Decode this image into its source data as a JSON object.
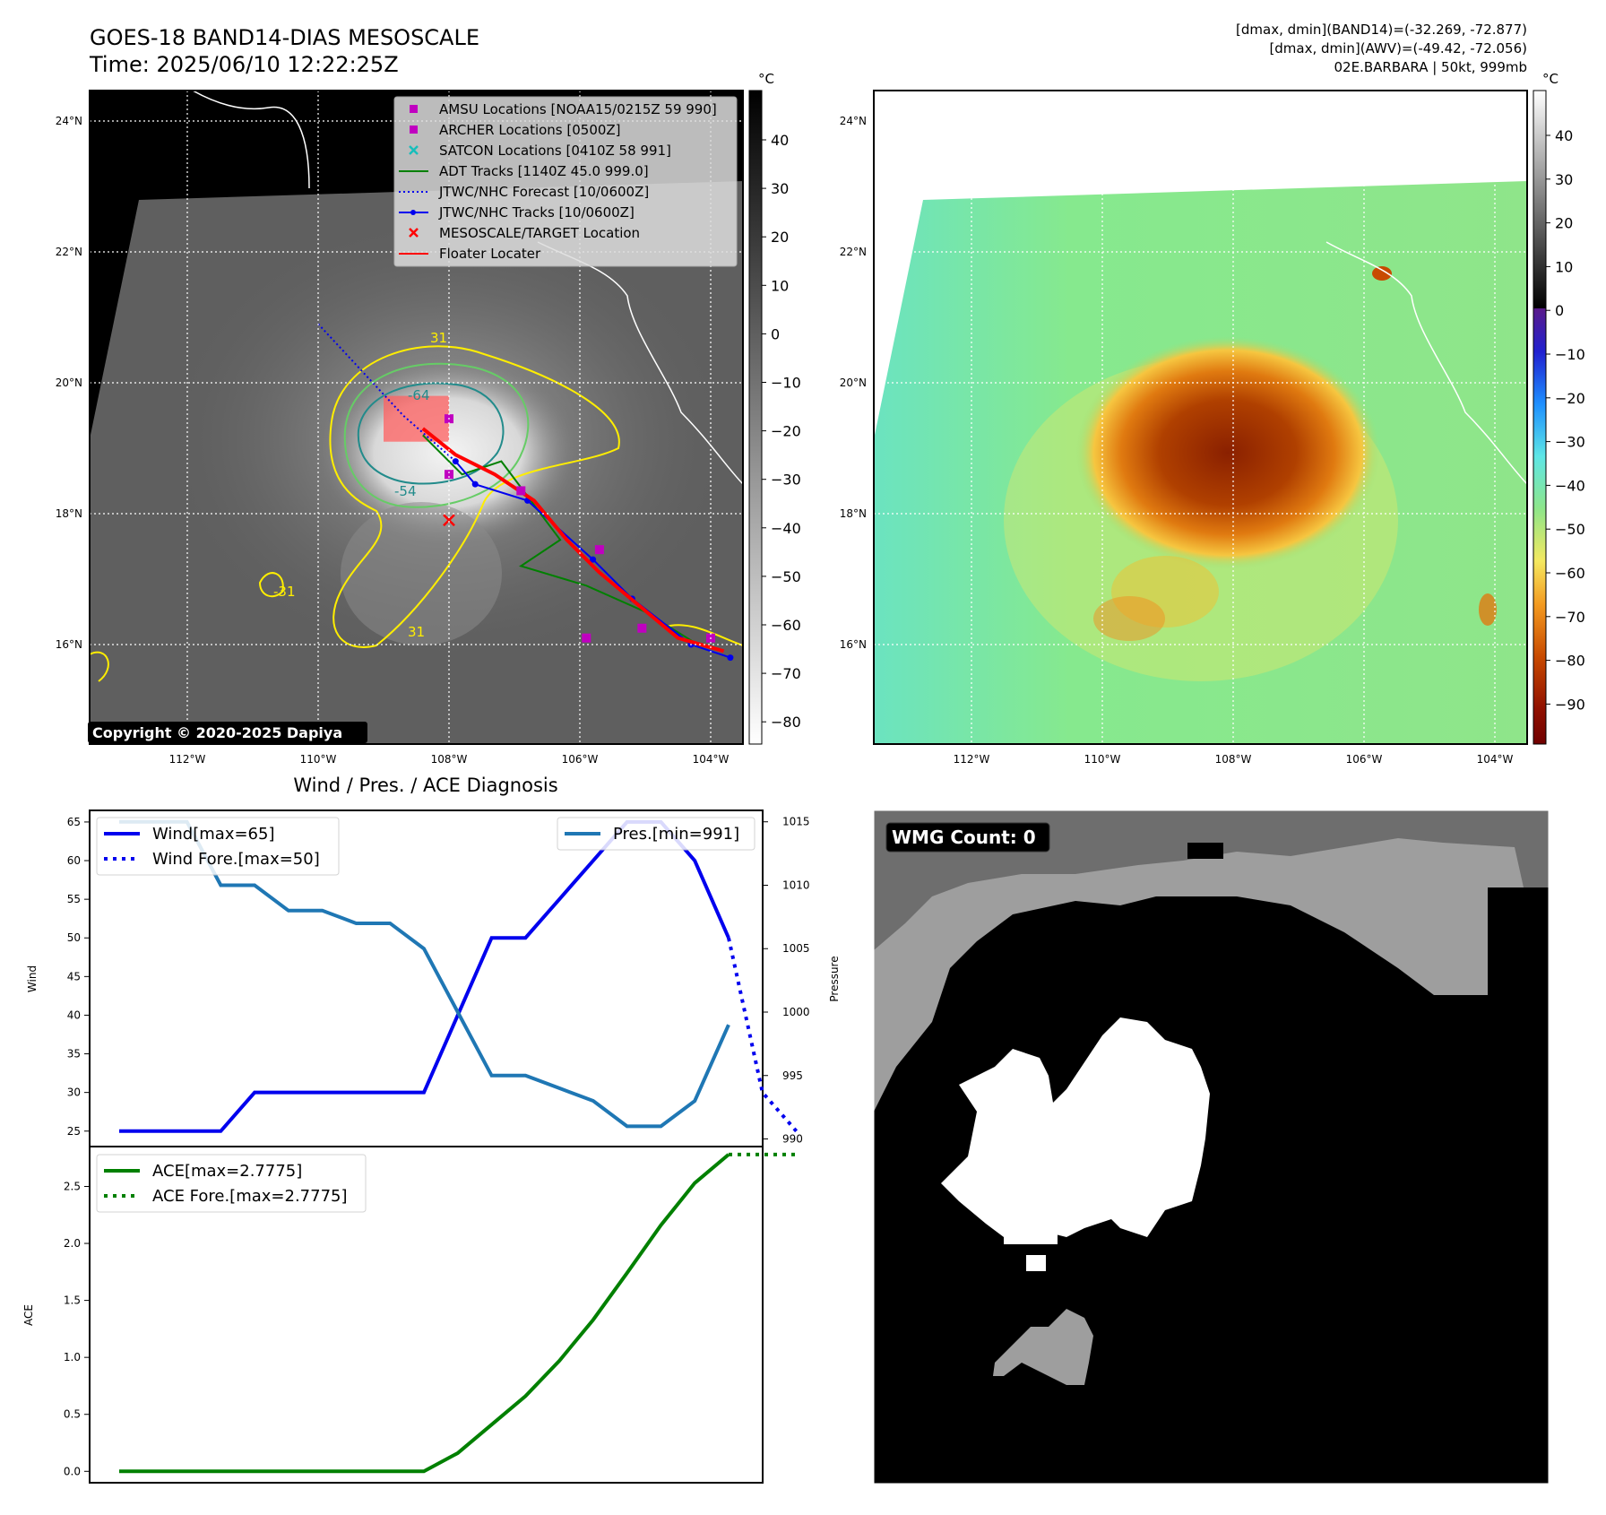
{
  "header": {
    "title_line1": "GOES-18 BAND14-DIAS MESOSCALE",
    "title_line2": "Time: 2025/06/10 12:22:25Z",
    "stats_line1": "[dmax, dmin](BAND14)=(-32.269, -72.877)",
    "stats_line2": "[dmax, dmin](AWV)=(-49.42, -72.056)",
    "stats_line3": "02E.BARBARA | 50kt, 999mb"
  },
  "colors": {
    "wind": "#0000ee",
    "pressure": "#1f77b4",
    "ace": "#008000",
    "amsu": "#c000c0",
    "satcon": "#17bebb",
    "adt": "#008000",
    "track": "#0000ee",
    "floater": "#ff0000",
    "contour_31": "#ffee00",
    "contour_54": "#66cc66",
    "contour_64": "#228b8b"
  },
  "map": {
    "lat_ticks": [
      "24°N",
      "22°N",
      "20°N",
      "18°N",
      "16°N"
    ],
    "lon_ticks": [
      "112°W",
      "110°W",
      "108°W",
      "106°W",
      "104°W"
    ],
    "contour_labels": [
      "31",
      "-64",
      "-54",
      "-31",
      "31"
    ],
    "copyright": "Copyright © 2020-2025 Dapiya",
    "legend": [
      {
        "label": "AMSU Locations [NOAA15/0215Z 59 990]",
        "kind": "square",
        "color": "#c000c0"
      },
      {
        "label": "ARCHER Locations [0500Z]",
        "kind": "square",
        "color": "#c000c0"
      },
      {
        "label": "SATCON Locations [0410Z 58 991]",
        "kind": "x",
        "color": "#17bebb"
      },
      {
        "label": "ADT Tracks [1140Z 45.0 999.0]",
        "kind": "line",
        "color": "#008000"
      },
      {
        "label": "JTWC/NHC Forecast [10/0600Z]",
        "kind": "dotted",
        "color": "#0000ee"
      },
      {
        "label": "JTWC/NHC Tracks [10/0600Z]",
        "kind": "linedot",
        "color": "#0000ee"
      },
      {
        "label": "MESOSCALE/TARGET Location",
        "kind": "x",
        "color": "#ff0000"
      },
      {
        "label": "Floater Locater",
        "kind": "line",
        "color": "#ff0000"
      }
    ],
    "jtwc_track": [
      [
        -107.9,
        18.8
      ],
      [
        -107.6,
        18.45
      ],
      [
        -106.8,
        18.2
      ],
      [
        -105.8,
        17.3
      ],
      [
        -105.2,
        16.7
      ],
      [
        -104.3,
        16.0
      ],
      [
        -103.7,
        15.8
      ]
    ],
    "jtwc_forecast": [
      [
        -110.0,
        20.9
      ],
      [
        -108.7,
        19.5
      ],
      [
        -107.9,
        18.8
      ]
    ],
    "adt_track": [
      [
        -108.4,
        19.2
      ],
      [
        -107.8,
        18.6
      ],
      [
        -107.2,
        18.8
      ],
      [
        -106.3,
        17.6
      ],
      [
        -106.9,
        17.2
      ],
      [
        -105.9,
        16.9
      ],
      [
        -105.0,
        16.5
      ],
      [
        -104.2,
        16.0
      ]
    ],
    "amsu_points": [
      [
        -108.0,
        19.45
      ],
      [
        -106.9,
        18.35
      ],
      [
        -105.7,
        17.45
      ],
      [
        -105.05,
        16.25
      ],
      [
        -105.9,
        16.1
      ],
      [
        -104.0,
        16.1
      ],
      [
        -108.0,
        18.6
      ]
    ],
    "target_x": [
      -108.0,
      17.9
    ],
    "floater_box": {
      "lon0": -109.0,
      "lon1": -108.0,
      "lat0": 19.1,
      "lat1": 19.8
    }
  },
  "colorbar_band14": {
    "unit": "°C",
    "ticks": [
      "40",
      "30",
      "20",
      "10",
      "0",
      "−10",
      "−20",
      "−30",
      "−40",
      "−50",
      "−60",
      "−70",
      "−80"
    ]
  },
  "colorbar_awv": {
    "unit": "°C",
    "ticks": [
      "40",
      "30",
      "20",
      "10",
      "0",
      "−10",
      "−20",
      "−30",
      "−40",
      "−50",
      "−60",
      "−70",
      "−80",
      "−90"
    ]
  },
  "wmg": {
    "label": "WMG Count: 0"
  },
  "chart_data": [
    {
      "type": "line",
      "title": "Wind / Pres. / ACE Diagnosis",
      "ylabel": "Wind",
      "ylabel2": "Pressure",
      "ylim": [
        23,
        66.5
      ],
      "ylim2": [
        989.4,
        1015.9
      ],
      "yticks": [
        25,
        30,
        35,
        40,
        45,
        50,
        55,
        60,
        65
      ],
      "yticks2": [
        990,
        995,
        1000,
        1005,
        1010,
        1015
      ],
      "x": [
        0,
        1,
        2,
        3,
        4,
        5,
        6,
        7,
        8,
        9,
        10,
        11,
        12,
        13,
        14,
        15,
        16,
        17,
        18,
        19
      ],
      "series": [
        {
          "name": "Wind[max=65]",
          "axis": "left",
          "style": "solid",
          "x": [
            0,
            1,
            2,
            3,
            4,
            5,
            6,
            7,
            8,
            9,
            10,
            11,
            12,
            13,
            14,
            15,
            16,
            17,
            18
          ],
          "values": [
            25,
            25,
            25,
            25,
            30,
            30,
            30,
            30,
            30,
            30,
            40,
            50,
            50,
            55,
            60,
            65,
            65,
            60,
            50
          ]
        },
        {
          "name": "Wind Fore.[max=50]",
          "axis": "left",
          "style": "dotted",
          "x": [
            18,
            19,
            20
          ],
          "values": [
            50,
            30,
            25
          ]
        },
        {
          "name": "Pres.[min=991]",
          "axis": "right",
          "style": "solid",
          "x": [
            0,
            1,
            2,
            3,
            4,
            5,
            6,
            7,
            8,
            9,
            10,
            11,
            12,
            13,
            14,
            15,
            16,
            17,
            18
          ],
          "values": [
            1015,
            1015,
            1015,
            1010,
            1010,
            1008,
            1008,
            1007,
            1007,
            1005,
            1000,
            995,
            995,
            994,
            993,
            991,
            991,
            993,
            999
          ]
        }
      ]
    },
    {
      "type": "line",
      "ylabel": "ACE",
      "ylim": [
        -0.1,
        2.85
      ],
      "yticks": [
        0.0,
        0.5,
        1.0,
        1.5,
        2.0,
        2.5
      ],
      "series": [
        {
          "name": "ACE[max=2.7775]",
          "style": "solid",
          "x": [
            0,
            1,
            2,
            3,
            4,
            5,
            6,
            7,
            8,
            9,
            10,
            11,
            12,
            13,
            14,
            15,
            16,
            17,
            18
          ],
          "values": [
            0,
            0,
            0,
            0,
            0,
            0,
            0,
            0,
            0,
            0,
            0.16,
            0.41,
            0.66,
            0.97,
            1.33,
            1.74,
            2.16,
            2.53,
            2.78
          ]
        },
        {
          "name": "ACE Fore.[max=2.7775]",
          "style": "dotted",
          "x": [
            18,
            19,
            20
          ],
          "values": [
            2.78,
            2.78,
            2.78
          ]
        }
      ]
    }
  ]
}
